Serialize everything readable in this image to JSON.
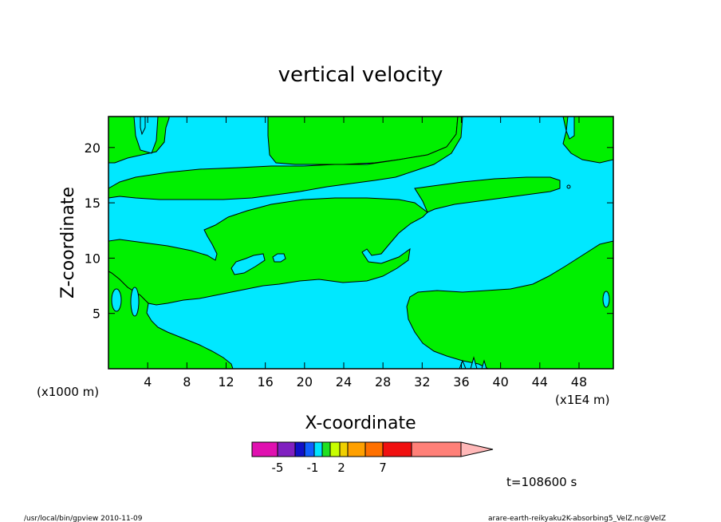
{
  "chart_data": {
    "type": "contour",
    "title": "vertical velocity",
    "xlabel": "X-coordinate",
    "ylabel": "Z-coordinate",
    "x_unit_left": "(x1000 m)",
    "x_unit_right": "(x1E4 m)",
    "xlim": [
      0,
      51.5
    ],
    "ylim": [
      0,
      22.8
    ],
    "x_ticks": [
      4,
      8,
      12,
      16,
      20,
      24,
      28,
      32,
      36,
      40,
      44,
      48
    ],
    "y_ticks": [
      5,
      10,
      15,
      20
    ],
    "colorbar": {
      "tick_labels": [
        {
          "value": -5,
          "label": "-5"
        },
        {
          "value": -1,
          "label": "-1"
        },
        {
          "value": 2,
          "label": "2"
        },
        {
          "value": 7,
          "label": "7"
        }
      ],
      "colors": [
        "#e010b0",
        "#8020c0",
        "#1010c8",
        "#1060ff",
        "#00e4ff",
        "#20e020",
        "#c8ff00",
        "#f0d000",
        "#ffa000",
        "#ff7000",
        "#f01010",
        "#ff8078",
        "#ffb8b8"
      ],
      "extend": "max"
    },
    "fill_colors": {
      "negative_region": "#00e8ff",
      "positive_region": "#00f000"
    },
    "time_label": "t=108600 s"
  },
  "footer": {
    "left": "/usr/local/bin/gpview  2010-11-09",
    "right": "arare-earth-reikyaku2K-absorbing5_VelZ.nc@VelZ"
  }
}
